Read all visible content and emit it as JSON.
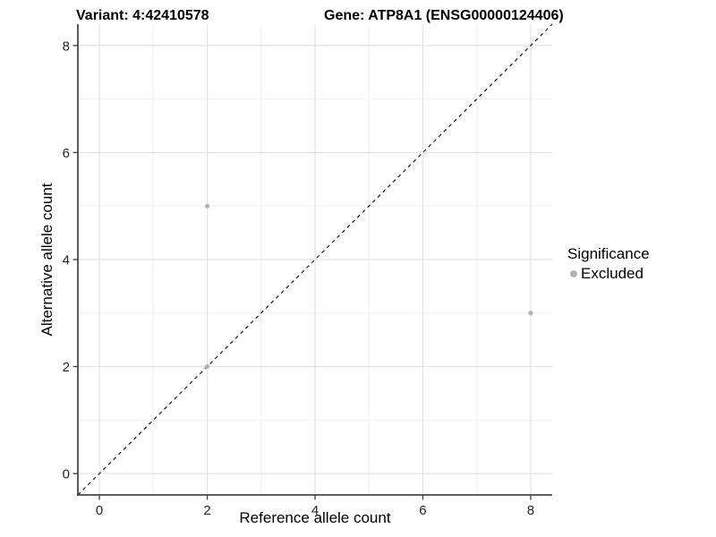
{
  "header": {
    "variant_title": "Variant: 4:42410578",
    "gene_title": "Gene: ATP8A1 (ENSG00000124406)"
  },
  "legend": {
    "title": "Significance",
    "items": [
      {
        "label": "Excluded",
        "color": "#b3b3b3",
        "marker": "circle-icon"
      }
    ]
  },
  "chart_data": {
    "type": "scatter",
    "title_left": "Variant: 4:42410578",
    "title_right": "Gene: ATP8A1 (ENSG00000124406)",
    "xlabel": "Reference allele count",
    "ylabel": "Alternative allele count",
    "xlim": [
      -0.4,
      8.4
    ],
    "ylim": [
      -0.4,
      8.4
    ],
    "xticks": [
      0,
      2,
      4,
      6,
      8
    ],
    "yticks": [
      0,
      2,
      4,
      6,
      8
    ],
    "x_minor_ticks": [
      1,
      3,
      5,
      7
    ],
    "y_minor_ticks": [
      1,
      3,
      5,
      7
    ],
    "grid": "major and minor gridlines, light gray on white panel",
    "legend_position": "right",
    "legend_title": "Significance",
    "series": [
      {
        "name": "Excluded",
        "color": "#b3b3b3",
        "marker": "circle",
        "points": [
          [
            2,
            5
          ],
          [
            2,
            2
          ],
          [
            8,
            3
          ]
        ]
      }
    ],
    "reference_line": {
      "type": "identity y=x",
      "style": "dashed",
      "color": "#000000"
    }
  },
  "style": {
    "grid_major": "#e3e3e3",
    "grid_minor": "#f0f0f0",
    "axis_line": "#474747",
    "tick_color": "#474747",
    "tick_text": "#262626",
    "point_color": "#b3b3b3",
    "background": "#ffffff"
  }
}
